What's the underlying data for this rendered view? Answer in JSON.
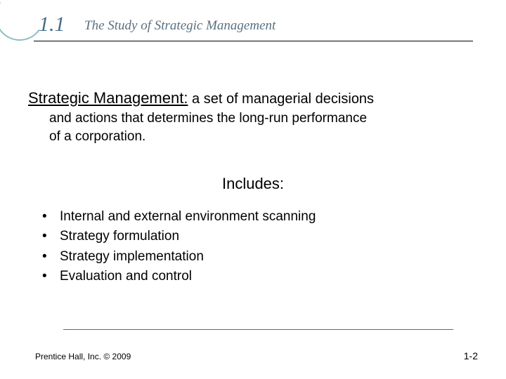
{
  "header": {
    "section_number": "1.1",
    "section_title": "The Study of Strategic Management",
    "arc_color": "#8bbec3",
    "number_color": "#466d8a",
    "title_color": "#5a7080"
  },
  "definition": {
    "term": "Strategic Management:",
    "text_line1": " a set of managerial decisions",
    "text_line2": "and actions that determines the long-run performance",
    "text_line3": "of a corporation."
  },
  "includes": {
    "heading": "Includes:",
    "items": [
      "Internal and external environment scanning",
      "Strategy formulation",
      "Strategy implementation",
      "Evaluation and control"
    ]
  },
  "footer": {
    "copyright": "Prentice Hall, Inc. © 2009",
    "page_number": "1-2"
  },
  "styling": {
    "background_color": "#ffffff",
    "text_color": "#000000",
    "body_font": "Verdana",
    "header_font": "Georgia",
    "term_fontsize": 22,
    "body_fontsize": 19,
    "section_number_fontsize": 30,
    "section_title_fontsize": 19
  }
}
